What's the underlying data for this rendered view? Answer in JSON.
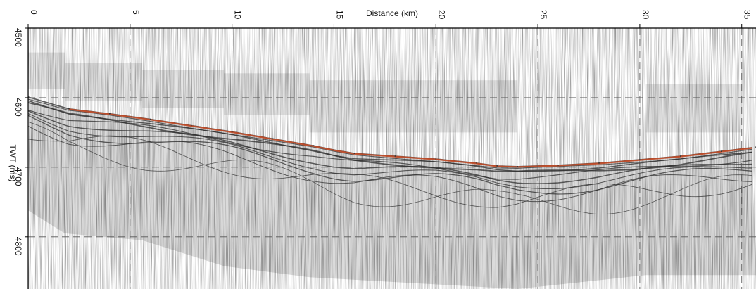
{
  "chart_data": {
    "type": "heatmap",
    "title": "",
    "xlabel": "Distance (km)",
    "ylabel": "TWT (ms)",
    "x_ticks": [
      0,
      5,
      10,
      15,
      20,
      25,
      30,
      35
    ],
    "y_ticks": [
      4500,
      4600,
      4700,
      4800
    ],
    "xlim": [
      0,
      35.7
    ],
    "ylim": [
      4500,
      4875
    ],
    "y_inverted": true,
    "x_axis_position": "top",
    "grid": "dashed",
    "seafloor_twt": {
      "x": [
        0,
        2,
        4,
        6,
        8,
        10,
        12,
        14,
        15,
        16,
        18,
        20,
        22,
        23,
        24,
        26,
        28,
        30,
        32,
        34,
        35.7
      ],
      "y": [
        4599,
        4616,
        4623,
        4631,
        4640,
        4649,
        4659,
        4669,
        4675,
        4680,
        4684,
        4688,
        4694,
        4698,
        4699,
        4697,
        4694,
        4689,
        4684,
        4677,
        4671
      ]
    },
    "colors": {
      "background": "#ffffff",
      "seismic": "#2f2f2f",
      "reflector": "#c24a26",
      "grid": "#555555"
    }
  }
}
